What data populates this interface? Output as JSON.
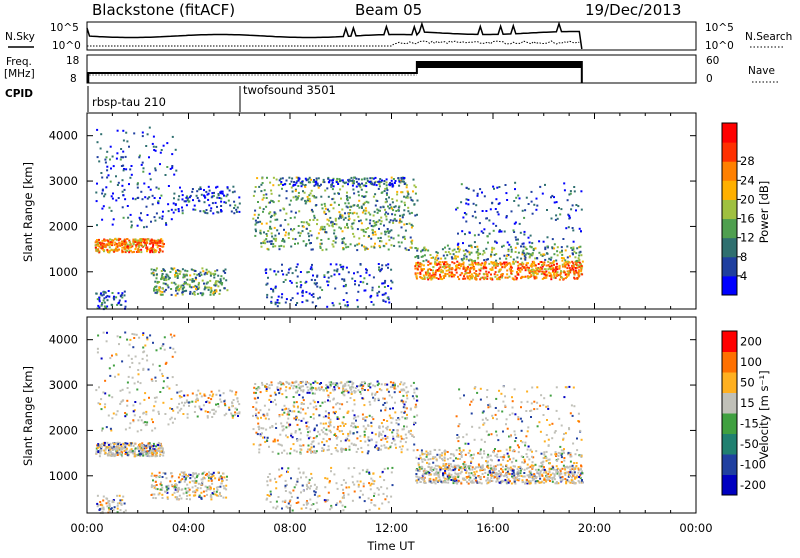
{
  "header": {
    "station": "Blackstone (fitACF)",
    "beam": "Beam 05",
    "date": "19/Dec/2013"
  },
  "top_panels": {
    "nsky_label": "N.Sky",
    "nsky_ticks": [
      "10^5",
      "10^0"
    ],
    "nsearch_label": "N.Search",
    "nsearch_ticks": [
      "10^5",
      "10^0"
    ],
    "freq_label": "Freq.",
    "freq_unit": "[MHz]",
    "freq_ticks": [
      "18",
      "8"
    ],
    "nave_label": "Nave",
    "nave_ticks": [
      "60",
      "0"
    ],
    "cpid_label": "CPID"
  },
  "cpid_segments": [
    {
      "label": "rbsp-tau 210",
      "start_hour": 0
    },
    {
      "label": "twofsound 3501",
      "start_hour": 6
    }
  ],
  "colors": {
    "power_scale": [
      "#0000ff",
      "#1f3f9f",
      "#2f6f6f",
      "#4f9f4f",
      "#9fc040",
      "#ffb000",
      "#ff8000",
      "#ff3000",
      "#ff0000"
    ],
    "velocity_scale": [
      "#ff0000",
      "#ff7000",
      "#ffb020",
      "#c0c0b8",
      "#40a040",
      "#208070",
      "#2040a0",
      "#0000c0"
    ]
  },
  "chart_data": [
    {
      "type": "heatmap",
      "title": "",
      "ylabel": "Slant Range [km]",
      "ylim": [
        180,
        4500
      ],
      "y_ticks": [
        "1000",
        "2000",
        "3000",
        "4000"
      ],
      "x_ticks": [
        "00:00",
        "04:00",
        "08:00",
        "12:00",
        "16:00",
        "20:00",
        "00:00"
      ],
      "xlim_hours": [
        0,
        24
      ],
      "colorbar_label": "Power [dB]",
      "colorbar_ticks": [
        "4",
        "8",
        "12",
        "16",
        "20",
        "24",
        "28"
      ],
      "features": [
        {
          "hours": [
            0.3,
            3.0
          ],
          "range_km": [
            1450,
            1750
          ],
          "level": "high"
        },
        {
          "hours": [
            12.8,
            19.5
          ],
          "range_km": [
            850,
            1250
          ],
          "level": "high"
        },
        {
          "hours": [
            6.5,
            13.0
          ],
          "range_km": [
            1500,
            3100
          ],
          "level": "medium"
        },
        {
          "hours": [
            2.5,
            5.5
          ],
          "range_km": [
            500,
            1000
          ],
          "level": "medium"
        }
      ]
    },
    {
      "type": "heatmap",
      "ylabel": "Slant Range [km]",
      "ylim": [
        180,
        4500
      ],
      "y_ticks": [
        "1000",
        "2000",
        "3000",
        "4000"
      ],
      "x_ticks": [
        "00:00",
        "04:00",
        "08:00",
        "12:00",
        "16:00",
        "20:00",
        "00:00"
      ],
      "xlabel": "Time UT",
      "xlim_hours": [
        0,
        24
      ],
      "colorbar_label": "Velocity [m s⁻¹]",
      "colorbar_ticks": [
        "200",
        "100",
        "50",
        "15",
        "-15",
        "-50",
        "-100",
        "-200"
      ]
    }
  ]
}
